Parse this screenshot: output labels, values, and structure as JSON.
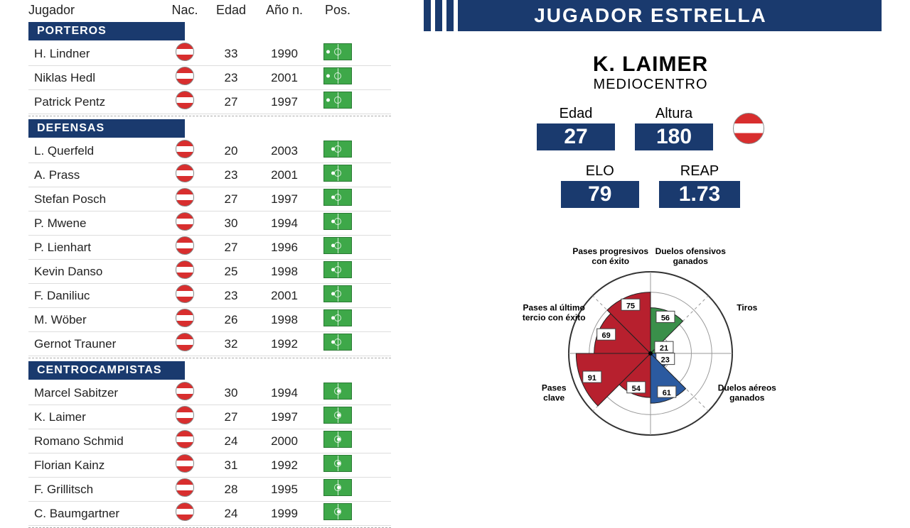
{
  "colors": {
    "navy": "#1a3a6e",
    "red": "#b7202e",
    "green_slice": "#3a8f4a",
    "blue_slice": "#2b5aa0",
    "grid": "#999",
    "pitch_green": "#3ea849"
  },
  "table": {
    "headers": {
      "player": "Jugador",
      "nat": "Nac.",
      "age": "Edad",
      "year": "Año n.",
      "pos": "Pos."
    },
    "sections": [
      {
        "title": "PORTEROS",
        "pos_dot": "gk",
        "players": [
          {
            "name": "H. Lindner",
            "nat": "aut",
            "age": 33,
            "year": 1990
          },
          {
            "name": "Niklas Hedl",
            "nat": "aut",
            "age": 23,
            "year": 2001
          },
          {
            "name": "Patrick Pentz",
            "nat": "aut",
            "age": 27,
            "year": 1997
          }
        ]
      },
      {
        "title": "DEFENSAS",
        "pos_dot": "def",
        "players": [
          {
            "name": "L. Querfeld",
            "nat": "aut",
            "age": 20,
            "year": 2003
          },
          {
            "name": "A. Prass",
            "nat": "aut",
            "age": 23,
            "year": 2001
          },
          {
            "name": "Stefan Posch",
            "nat": "aut",
            "age": 27,
            "year": 1997
          },
          {
            "name": "P. Mwene",
            "nat": "aut",
            "age": 30,
            "year": 1994
          },
          {
            "name": "P. Lienhart",
            "nat": "aut",
            "age": 27,
            "year": 1996
          },
          {
            "name": "Kevin Danso",
            "nat": "aut",
            "age": 25,
            "year": 1998
          },
          {
            "name": "F. Daniliuc",
            "nat": "aut",
            "age": 23,
            "year": 2001
          },
          {
            "name": "M. Wöber",
            "nat": "aut",
            "age": 26,
            "year": 1998
          },
          {
            "name": "Gernot Trauner",
            "nat": "aut",
            "age": 32,
            "year": 1992
          }
        ]
      },
      {
        "title": "CENTROCAMPISTAS",
        "pos_dot": "mid",
        "players": [
          {
            "name": "Marcel Sabitzer",
            "nat": "aut",
            "age": 30,
            "year": 1994
          },
          {
            "name": "K. Laimer",
            "nat": "aut",
            "age": 27,
            "year": 1997
          },
          {
            "name": "Romano Schmid",
            "nat": "aut",
            "age": 24,
            "year": 2000
          },
          {
            "name": "Florian Kainz",
            "nat": "aut",
            "age": 31,
            "year": 1992
          },
          {
            "name": "F. Grillitsch",
            "nat": "aut",
            "age": 28,
            "year": 1995
          },
          {
            "name": "C. Baumgartner",
            "nat": "aut",
            "age": 24,
            "year": 1999
          }
        ]
      }
    ]
  },
  "star": {
    "banner": "JUGADOR ESTRELLA",
    "name": "K. LAIMER",
    "role": "MEDIOCENTRO",
    "nat": "aut",
    "stats": [
      {
        "label": "Edad",
        "value": "27"
      },
      {
        "label": "Altura",
        "value": "180"
      },
      {
        "label": "ELO",
        "value": "79"
      },
      {
        "label": "REAP",
        "value": "1.73"
      }
    ],
    "radar": {
      "type": "polar-bar",
      "max": 100,
      "rings": [
        25,
        50,
        75,
        100
      ],
      "axes": [
        {
          "label": "Duelos ofensivos ganados",
          "value": 56,
          "color": "#3a8f4a",
          "angle_deg": 22.5
        },
        {
          "label": "Tiros",
          "value": 21,
          "color": "#3a8f4a",
          "angle_deg": 67.5
        },
        {
          "label": "Duelos aéreos ganados",
          "value": 23,
          "color": "#2b5aa0",
          "angle_deg": 112.5
        },
        {
          "label": "",
          "value": 61,
          "color": "#2b5aa0",
          "angle_deg": 157.5
        },
        {
          "label": "",
          "value": 54,
          "color": "#b7202e",
          "angle_deg": 202.5
        },
        {
          "label": "Pases clave",
          "value": 91,
          "color": "#b7202e",
          "angle_deg": 247.5
        },
        {
          "label": "Pases al último tercio con éxito",
          "value": 69,
          "color": "#b7202e",
          "angle_deg": 292.5
        },
        {
          "label": "Pases progresivos con éxito",
          "value": 75,
          "color": "#b7202e",
          "angle_deg": 337.5
        }
      ],
      "label_fontsize": 12,
      "value_fontsize": 11,
      "grid_color": "#999",
      "background": "#ffffff"
    }
  }
}
